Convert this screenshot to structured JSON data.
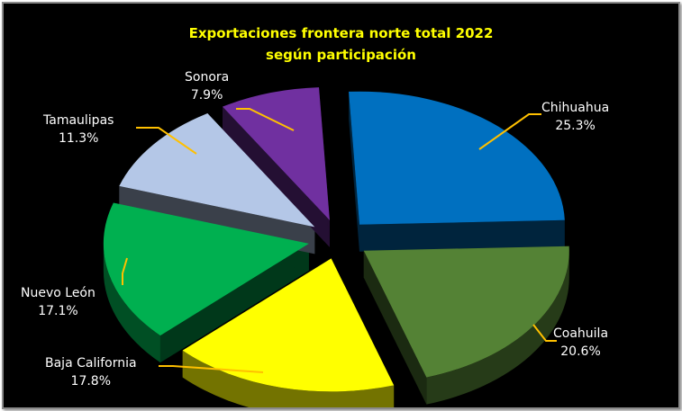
{
  "chart_data": {
    "type": "pie",
    "style": "3d-exploded",
    "title": "Exportaciones frontera norte total 2022",
    "subtitle": "según participación",
    "unit": "%",
    "legend": "none",
    "slices": [
      {
        "label": "Chihuahua",
        "value": 25.3,
        "display": "25.3%",
        "color": "#0070c0"
      },
      {
        "label": "Coahuila",
        "value": 20.6,
        "display": "20.6%",
        "color": "#548235"
      },
      {
        "label": "Baja California",
        "value": 17.8,
        "display": "17.8%",
        "color": "#ffff00"
      },
      {
        "label": "Nuevo León",
        "value": 17.1,
        "display": "17.1%",
        "color": "#00b050"
      },
      {
        "label": "Tamaulipas",
        "value": 11.3,
        "display": "11.3%",
        "color": "#b4c7e7"
      },
      {
        "label": "Sonora",
        "value": 7.9,
        "display": "7.9%",
        "color": "#7030a0"
      }
    ]
  }
}
